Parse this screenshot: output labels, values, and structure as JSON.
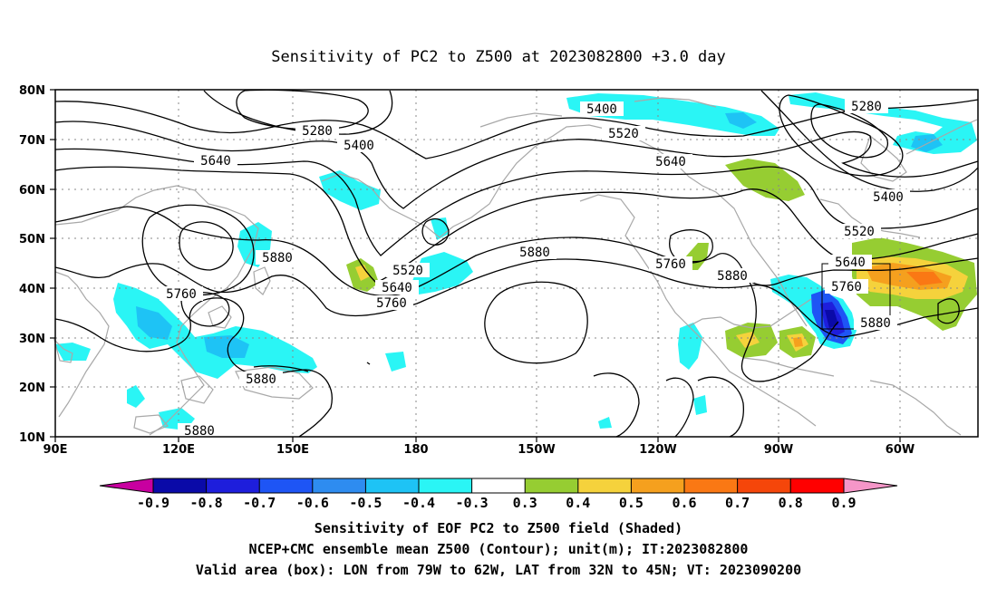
{
  "title": "Sensitivity of PC2 to Z500 at 2023082800 +3.0 day",
  "lat_labels": [
    "80N",
    "70N",
    "60N",
    "50N",
    "40N",
    "30N",
    "20N",
    "10N"
  ],
  "lon_labels": [
    "90E",
    "120E",
    "150E",
    "180",
    "150W",
    "120W",
    "90W",
    "60W"
  ],
  "contour_labels": {
    "c5280a": "5280",
    "c5400a": "5400",
    "c5640a": "5640",
    "c5880a": "5880",
    "c5760a": "5760",
    "c5880b": "5880",
    "c5880c": "5880",
    "c5520a": "5520",
    "c5640b": "5640",
    "c5760b": "5760",
    "c5880d": "5880",
    "c5400b": "5400",
    "c5520b": "5520",
    "c5640c": "5640",
    "c5760c": "5760",
    "c5880e": "5880",
    "c5280b": "5280",
    "c5400c": "5400",
    "c5520c": "5520",
    "c5640d": "5640",
    "c5760d": "5760",
    "c5880f": "5880"
  },
  "colorbar": {
    "labels": [
      "-0.9",
      "-0.8",
      "-0.7",
      "-0.6",
      "-0.5",
      "-0.4",
      "-0.3",
      "0.3",
      "0.4",
      "0.5",
      "0.6",
      "0.7",
      "0.8",
      "0.9"
    ],
    "colors": [
      "#0a0aa8",
      "#1e1edc",
      "#1e55f5",
      "#2e8cf0",
      "#1ec3f5",
      "#2af5f5",
      "#ffffff",
      "#96cd32",
      "#f5d23c",
      "#f5a01e",
      "#fa7814",
      "#f5460a",
      "#ff0000"
    ],
    "low_color": "#c800a0",
    "high_color": "#f596c8"
  },
  "caption": {
    "line1": "Sensitivity of EOF PC2 to Z500 field (Shaded)",
    "line2": "NCEP+CMC ensemble mean Z500 (Contour); unit(m); IT:2023082800",
    "line3": "Valid area (box): LON from 79W to 62W, LAT from 32N to 45N; VT: 2023090200"
  }
}
